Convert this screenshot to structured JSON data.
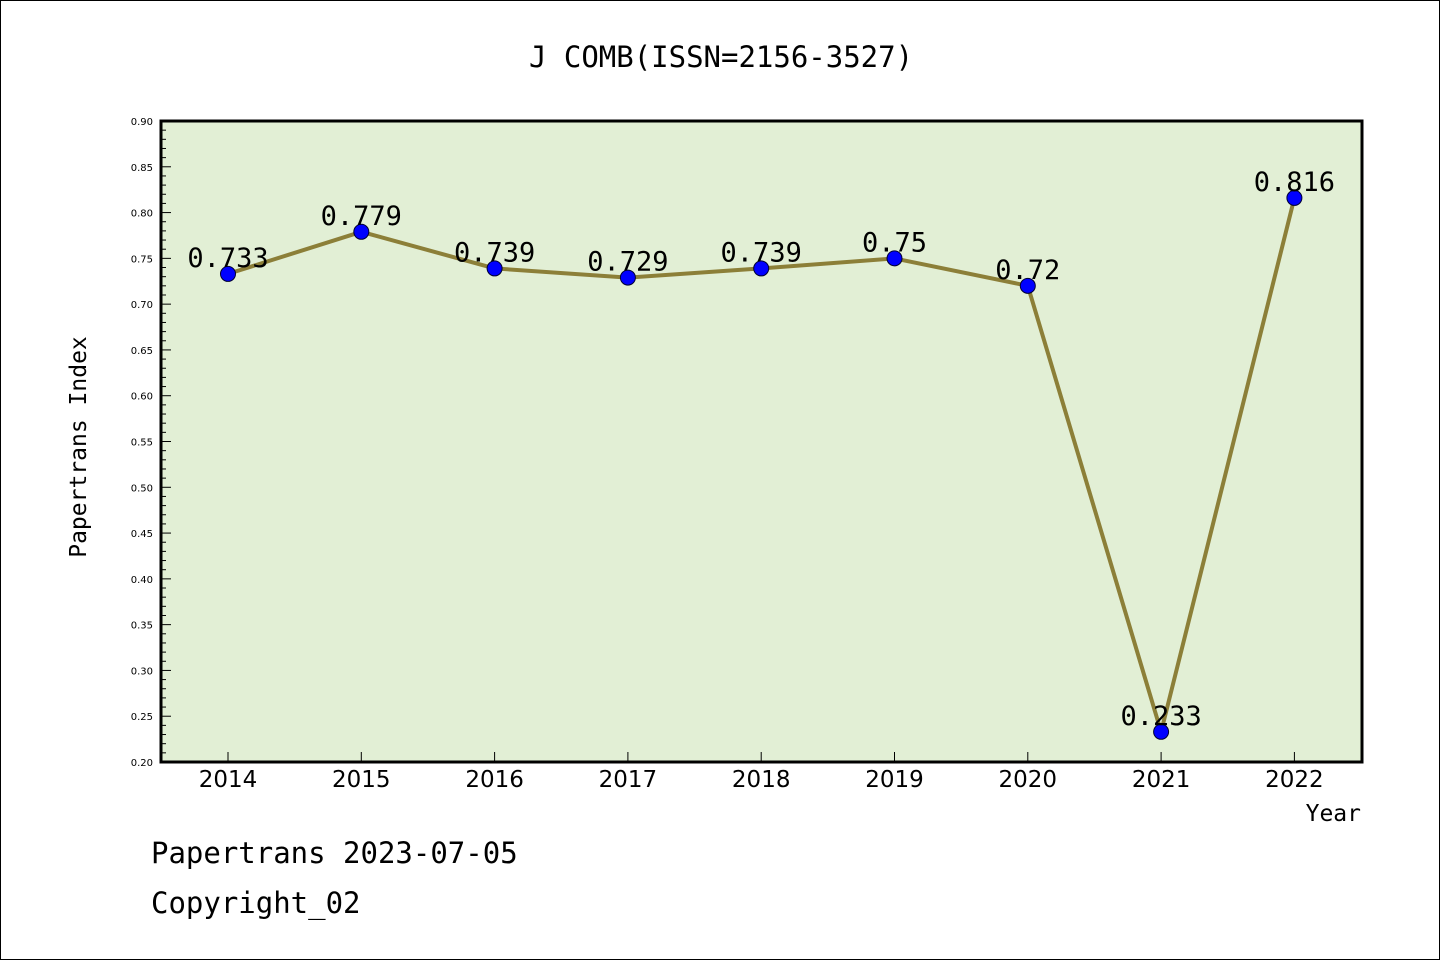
{
  "chart_data": {
    "type": "line",
    "title": "J COMB(ISSN=2156-3527)",
    "xlabel": "Year",
    "ylabel": "Papertrans Index",
    "categories": [
      "2014",
      "2015",
      "2016",
      "2017",
      "2018",
      "2019",
      "2020",
      "2021",
      "2022"
    ],
    "values": [
      0.733,
      0.779,
      0.739,
      0.729,
      0.739,
      0.75,
      0.72,
      0.233,
      0.816
    ],
    "data_labels": [
      "0.733",
      "0.779",
      "0.739",
      "0.729",
      "0.739",
      "0.75",
      "0.72",
      "0.233",
      "0.816"
    ],
    "ylim": [
      0.2,
      0.9
    ],
    "y_ticks": [
      "0.20",
      "0.25",
      "0.30",
      "0.35",
      "0.40",
      "0.45",
      "0.50",
      "0.55",
      "0.60",
      "0.65",
      "0.70",
      "0.75",
      "0.80",
      "0.85",
      "0.90"
    ],
    "grid": false,
    "colors": {
      "plot_background": "#e2efd5",
      "line": "#8c7f38",
      "marker": "#0000ff"
    }
  },
  "footer": {
    "date_line": "Papertrans 2023-07-05",
    "copyright": "Copyright_02"
  }
}
